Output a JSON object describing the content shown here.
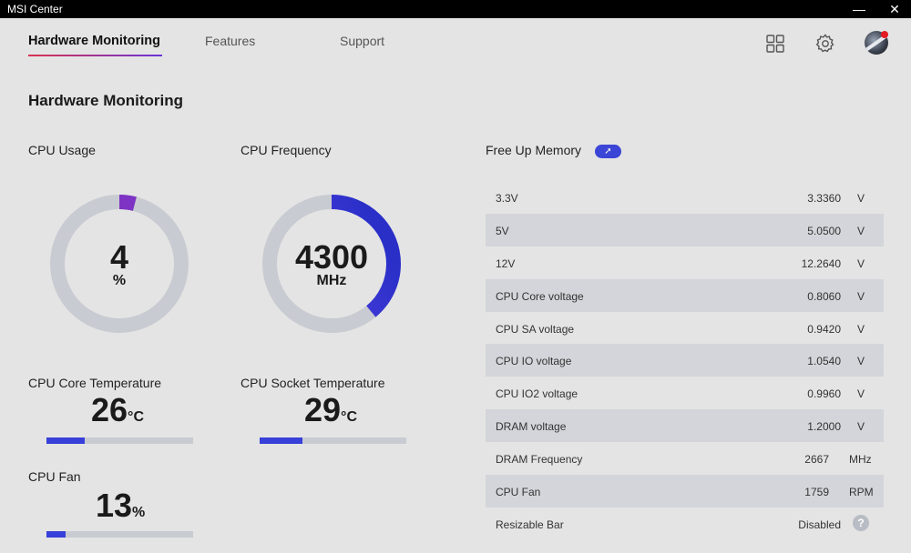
{
  "window": {
    "title": "MSI Center",
    "minimize_glyph": "—",
    "close_glyph": "✕"
  },
  "nav": {
    "tabs": [
      {
        "label": "Hardware Monitoring",
        "active": true
      },
      {
        "label": "Features",
        "active": false
      },
      {
        "label": "Support",
        "active": false
      }
    ],
    "icons": [
      "grid-icon",
      "gear-icon",
      "avatar"
    ]
  },
  "page": {
    "title": "Hardware Monitoring"
  },
  "cpu_usage": {
    "label": "CPU Usage",
    "value": "4",
    "unit": "%",
    "fraction": 0.04
  },
  "cpu_frequency": {
    "label": "CPU Frequency",
    "value": "4300",
    "unit": "MHz",
    "fraction": 0.39
  },
  "cpu_core_temp": {
    "label": "CPU Core Temperature",
    "value": "26",
    "unit": "°C",
    "fraction": 0.26
  },
  "cpu_socket_temp": {
    "label": "CPU Socket Temperature",
    "value": "29",
    "unit": "°C",
    "fraction": 0.29
  },
  "cpu_fan": {
    "label": "CPU Fan",
    "value": "13",
    "unit": "%",
    "fraction": 0.13
  },
  "free_memory": {
    "label": "Free Up Memory",
    "button_glyph": "➚"
  },
  "voltages": [
    {
      "name": "3.3V",
      "value": "3.3360",
      "unit": "V"
    },
    {
      "name": "5V",
      "value": "5.0500",
      "unit": "V"
    },
    {
      "name": "12V",
      "value": "12.2640",
      "unit": "V"
    },
    {
      "name": "CPU Core voltage",
      "value": "0.8060",
      "unit": "V"
    },
    {
      "name": "CPU SA voltage",
      "value": "0.9420",
      "unit": "V"
    },
    {
      "name": "CPU IO voltage",
      "value": "1.0540",
      "unit": "V"
    },
    {
      "name": "CPU IO2 voltage",
      "value": "0.9960",
      "unit": "V"
    },
    {
      "name": "DRAM voltage",
      "value": "1.2000",
      "unit": "V"
    },
    {
      "name": "DRAM Frequency",
      "value": "2667",
      "unit": "MHz"
    },
    {
      "name": "CPU Fan",
      "value": "1759",
      "unit": "RPM"
    },
    {
      "name": "Resizable Bar",
      "value": "Disabled",
      "unit": "?"
    }
  ],
  "colors": {
    "accent": "#3740d8",
    "gauge_track": "#c9cbd2",
    "purple": "#8a2fb8"
  }
}
